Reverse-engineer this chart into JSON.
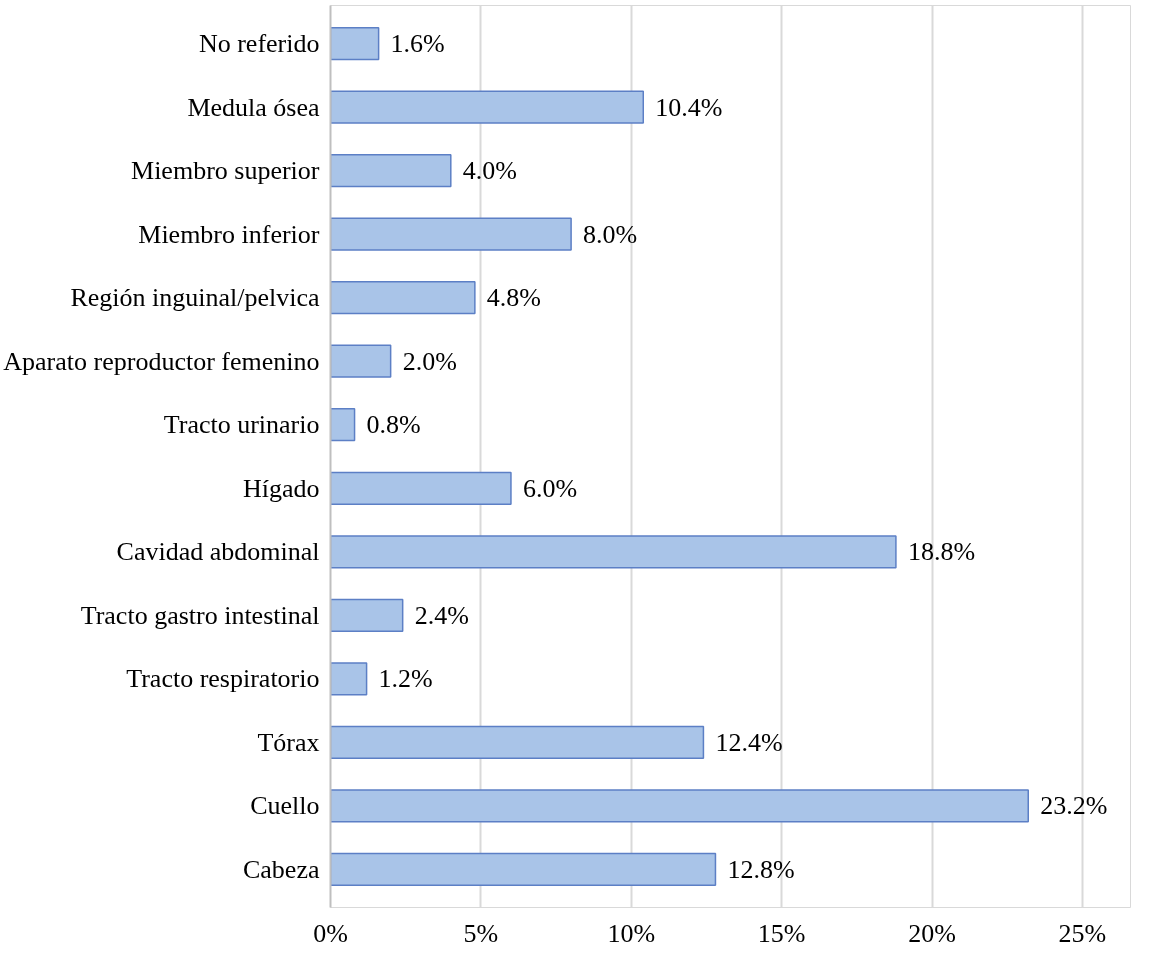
{
  "chart_data": {
    "type": "bar",
    "orientation": "horizontal",
    "categories": [
      "No referido",
      "Medula ósea",
      "Miembro superior",
      "Miembro inferior",
      "Región inguinal/pelvica",
      "Aparato reproductor femenino",
      "Tracto urinario",
      "Hígado",
      "Cavidad abdominal",
      "Tracto gastro intestinal",
      "Tracto respiratorio",
      "Tórax",
      "Cuello",
      "Cabeza"
    ],
    "values": [
      1.6,
      10.4,
      4.0,
      8.0,
      4.8,
      2.0,
      0.8,
      6.0,
      18.8,
      2.4,
      1.2,
      12.4,
      23.2,
      12.8
    ],
    "value_labels": [
      "1.6%",
      "10.4%",
      "4.0%",
      "8.0%",
      "4.8%",
      "2.0%",
      "0.8%",
      "6.0%",
      "18.8%",
      "2.4%",
      "1.2%",
      "12.4%",
      "23.2%",
      "12.8%"
    ],
    "color": "#a9c4e8",
    "xlim": [
      0,
      26.6
    ],
    "xticks": [
      {
        "value": 0,
        "label": "0%"
      },
      {
        "value": 5,
        "label": "5%"
      },
      {
        "value": 10,
        "label": "10%"
      },
      {
        "value": 15,
        "label": "15%"
      },
      {
        "value": 20,
        "label": "20%"
      },
      {
        "value": 25,
        "label": "25%"
      }
    ],
    "grid": "x"
  }
}
